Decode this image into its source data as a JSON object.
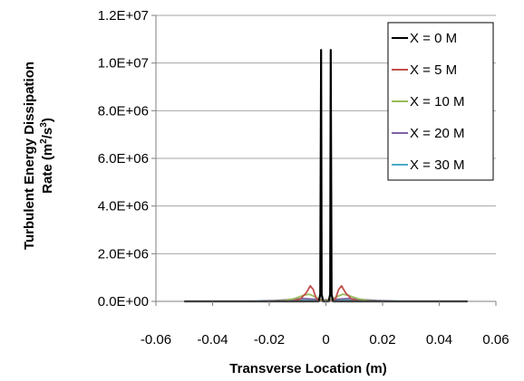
{
  "chart_data": {
    "type": "line",
    "title": "",
    "xlabel": "Transverse Location (m)",
    "ylabel_line1": "Turbulent Energy Dissipation",
    "ylabel_line2": "Rate (m",
    "ylabel_sup1": "2",
    "ylabel_mid": "/s",
    "ylabel_sup2": "3",
    "ylabel_end": ")",
    "xlim": [
      -0.06,
      0.06
    ],
    "ylim": [
      0,
      12000000
    ],
    "x_ticks": [
      -0.06,
      -0.04,
      -0.02,
      0,
      0.02,
      0.04,
      0.06
    ],
    "x_tick_labels": [
      "-0.06",
      "-0.04",
      "-0.02",
      "0",
      "0.02",
      "0.04",
      "0.06"
    ],
    "y_ticks": [
      0,
      2000000,
      4000000,
      6000000,
      8000000,
      10000000,
      12000000
    ],
    "y_tick_labels": [
      "0.0E+00",
      "2.0E+06",
      "4.0E+06",
      "6.0E+06",
      "8.0E+06",
      "1.0E+07",
      "1.2E+07"
    ],
    "grid": "horizontal",
    "legend_position": "top-right",
    "series": [
      {
        "name": "X = 0 M",
        "color": "#000000",
        "x": [
          -0.05,
          -0.004,
          -0.0025,
          -0.002,
          -0.0017,
          -0.0015,
          -0.001,
          0,
          0.001,
          0.0015,
          0.0017,
          0.002,
          0.0025,
          0.004,
          0.05
        ],
        "y": [
          0,
          0,
          0,
          300000,
          10550000,
          300000,
          0,
          0,
          0,
          300000,
          10550000,
          300000,
          0,
          0,
          0
        ]
      },
      {
        "name": "X = 5 M",
        "color": "#c0504d",
        "x": [
          -0.05,
          -0.012,
          -0.009,
          -0.007,
          -0.0055,
          -0.0045,
          -0.0035,
          -0.0025,
          -0.001,
          0,
          0.001,
          0.0025,
          0.0035,
          0.0045,
          0.0055,
          0.007,
          0.009,
          0.012,
          0.05
        ],
        "y": [
          0,
          0,
          100000,
          350000,
          650000,
          500000,
          150000,
          30000,
          0,
          0,
          0,
          30000,
          150000,
          500000,
          650000,
          350000,
          100000,
          0,
          0
        ]
      },
      {
        "name": "X = 10 M",
        "color": "#9bbb59",
        "x": [
          -0.05,
          -0.02,
          -0.015,
          -0.011,
          -0.008,
          -0.006,
          -0.004,
          -0.002,
          0,
          0.002,
          0.004,
          0.006,
          0.008,
          0.011,
          0.015,
          0.02,
          0.05
        ],
        "y": [
          0,
          0,
          30000,
          120000,
          250000,
          300000,
          200000,
          80000,
          30000,
          80000,
          200000,
          300000,
          250000,
          120000,
          30000,
          0,
          0
        ]
      },
      {
        "name": "X = 20 M",
        "color": "#8064a2",
        "x": [
          -0.05,
          -0.025,
          -0.018,
          -0.012,
          -0.008,
          -0.004,
          0,
          0.004,
          0.008,
          0.012,
          0.018,
          0.025,
          0.05
        ],
        "y": [
          0,
          0,
          30000,
          80000,
          120000,
          90000,
          60000,
          90000,
          120000,
          80000,
          30000,
          0,
          0
        ]
      },
      {
        "name": "X = 30 M",
        "color": "#4bacc6",
        "x": [
          -0.05,
          -0.03,
          -0.02,
          -0.01,
          0,
          0.01,
          0.02,
          0.03,
          0.05
        ],
        "y": [
          0,
          0,
          20000,
          40000,
          50000,
          40000,
          20000,
          0,
          0
        ]
      }
    ]
  }
}
